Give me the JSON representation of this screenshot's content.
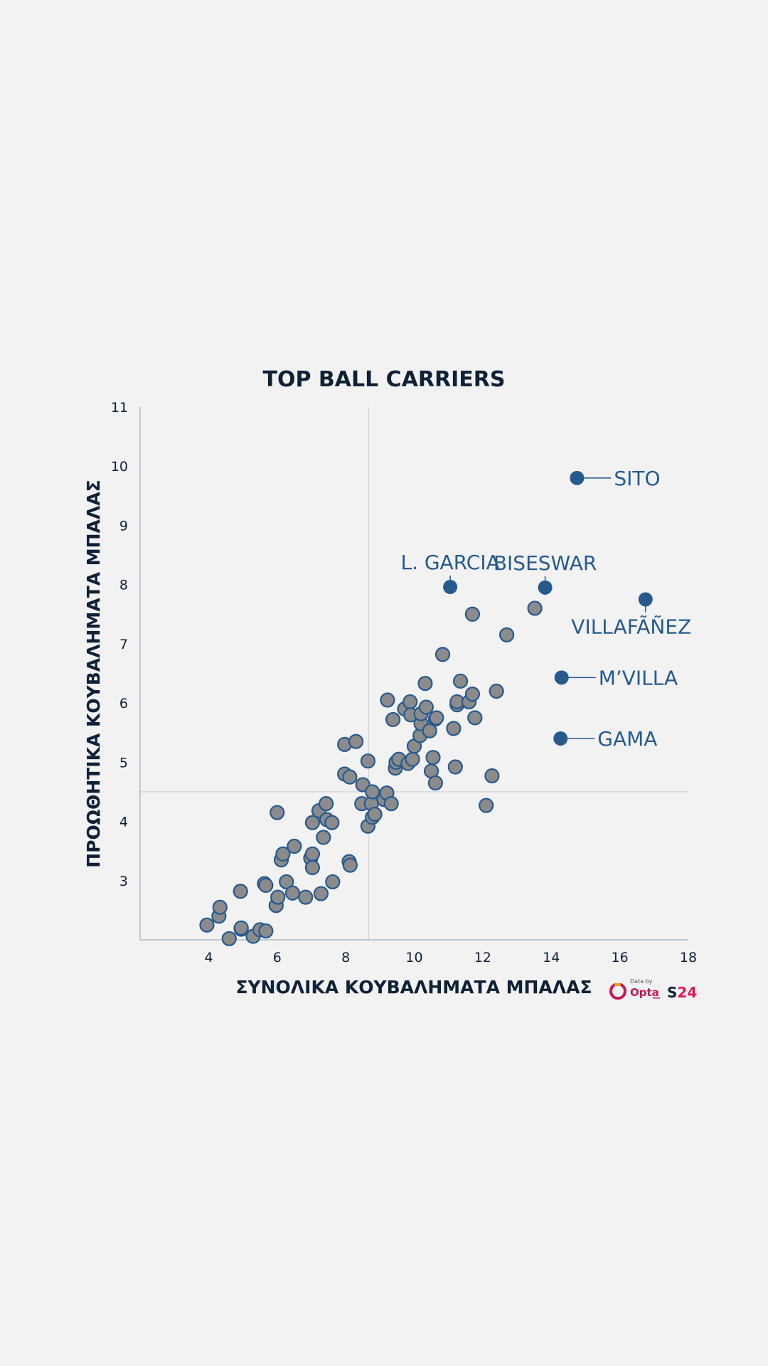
{
  "chart_data": {
    "type": "scatter",
    "title": "TOP BALL CARRIERS",
    "xlabel": "ΣΥΝΟΛΙΚΑ ΚΟΥΒΑΛΗΜΑΤΑ ΜΠΑΛΑΣ",
    "ylabel": "ΠΡΟΩΘΗΤΙΚΑ ΚΟΥΒΑΛΗΜΑΤΑ ΜΠΑΛΑΣ",
    "xlim": [
      2,
      18
    ],
    "ylim": [
      2,
      11
    ],
    "xticks": [
      4,
      6,
      8,
      10,
      12,
      14,
      16,
      18
    ],
    "yticks": [
      3,
      4,
      5,
      6,
      7,
      8,
      9,
      10,
      11
    ],
    "reference_lines": {
      "x": 8.67,
      "y": 4.5
    },
    "grid": false,
    "points": [
      [
        3.95,
        2.25
      ],
      [
        4.3,
        2.4
      ],
      [
        4.33,
        2.55
      ],
      [
        4.6,
        2.02
      ],
      [
        4.95,
        2.18
      ],
      [
        4.95,
        2.2
      ],
      [
        4.93,
        2.82
      ],
      [
        5.3,
        2.06
      ],
      [
        5.5,
        2.17
      ],
      [
        5.67,
        2.15
      ],
      [
        5.63,
        2.95
      ],
      [
        5.67,
        2.92
      ],
      [
        5.97,
        2.58
      ],
      [
        6.02,
        2.72
      ],
      [
        6.0,
        4.15
      ],
      [
        6.12,
        3.35
      ],
      [
        6.17,
        3.45
      ],
      [
        6.27,
        2.98
      ],
      [
        6.45,
        2.79
      ],
      [
        6.5,
        3.58
      ],
      [
        6.83,
        2.72
      ],
      [
        6.98,
        3.38
      ],
      [
        7.03,
        3.22
      ],
      [
        7.03,
        3.45
      ],
      [
        7.03,
        3.98
      ],
      [
        7.22,
        4.18
      ],
      [
        7.28,
        2.78
      ],
      [
        7.35,
        3.73
      ],
      [
        7.45,
        4.03
      ],
      [
        7.43,
        4.3
      ],
      [
        7.6,
        3.98
      ],
      [
        7.62,
        2.98
      ],
      [
        7.97,
        4.8
      ],
      [
        7.97,
        5.3
      ],
      [
        8.1,
        3.32
      ],
      [
        8.13,
        3.26
      ],
      [
        8.12,
        4.75
      ],
      [
        8.3,
        5.35
      ],
      [
        8.47,
        4.3
      ],
      [
        8.5,
        4.62
      ],
      [
        8.65,
        3.92
      ],
      [
        8.65,
        5.02
      ],
      [
        8.75,
        4.3
      ],
      [
        8.78,
        4.07
      ],
      [
        8.78,
        4.5
      ],
      [
        8.85,
        4.12
      ],
      [
        9.12,
        4.37
      ],
      [
        9.2,
        4.48
      ],
      [
        9.22,
        6.05
      ],
      [
        9.33,
        4.3
      ],
      [
        9.38,
        5.72
      ],
      [
        9.45,
        4.9
      ],
      [
        9.47,
        5.0
      ],
      [
        9.55,
        5.05
      ],
      [
        9.72,
        5.9
      ],
      [
        9.82,
        4.98
      ],
      [
        9.88,
        6.02
      ],
      [
        9.9,
        5.8
      ],
      [
        9.95,
        5.05
      ],
      [
        10.0,
        5.27
      ],
      [
        10.17,
        5.45
      ],
      [
        10.2,
        5.65
      ],
      [
        10.2,
        5.82
      ],
      [
        10.32,
        6.33
      ],
      [
        10.35,
        5.93
      ],
      [
        10.45,
        5.53
      ],
      [
        10.5,
        4.85
      ],
      [
        10.55,
        5.08
      ],
      [
        10.62,
        4.65
      ],
      [
        10.62,
        5.73
      ],
      [
        10.65,
        5.75
      ],
      [
        10.83,
        6.82
      ],
      [
        11.15,
        5.57
      ],
      [
        11.2,
        4.92
      ],
      [
        11.25,
        5.97
      ],
      [
        11.25,
        6.02
      ],
      [
        11.35,
        6.37
      ],
      [
        11.6,
        6.02
      ],
      [
        11.7,
        6.15
      ],
      [
        11.7,
        7.5
      ],
      [
        11.77,
        5.75
      ],
      [
        12.1,
        4.27
      ],
      [
        12.27,
        4.77
      ],
      [
        12.4,
        6.2
      ],
      [
        12.7,
        7.15
      ],
      [
        13.52,
        7.6
      ]
    ],
    "highlights": [
      {
        "name": "SITO",
        "x": 14.75,
        "y": 9.8
      },
      {
        "name": "L. GARCIA",
        "x": 11.05,
        "y": 7.96
      },
      {
        "name": "BISESWAR",
        "x": 13.82,
        "y": 7.95
      },
      {
        "name": "VILLAFÃÑEZ",
        "x": 16.75,
        "y": 7.75
      },
      {
        "name": "M’VILLA",
        "x": 14.3,
        "y": 6.43
      },
      {
        "name": "GAMA",
        "x": 14.27,
        "y": 5.4
      }
    ]
  },
  "colors": {
    "background": "#f2f2f3",
    "point_fill": "#8b8b8c",
    "point_stroke": "#265a8f",
    "highlight": "#265a8f",
    "axis": "#0f2136",
    "reference_line": "#cfd8df"
  },
  "branding": {
    "data_by": "Data by",
    "opta": "Opta",
    "s24": "S24"
  }
}
